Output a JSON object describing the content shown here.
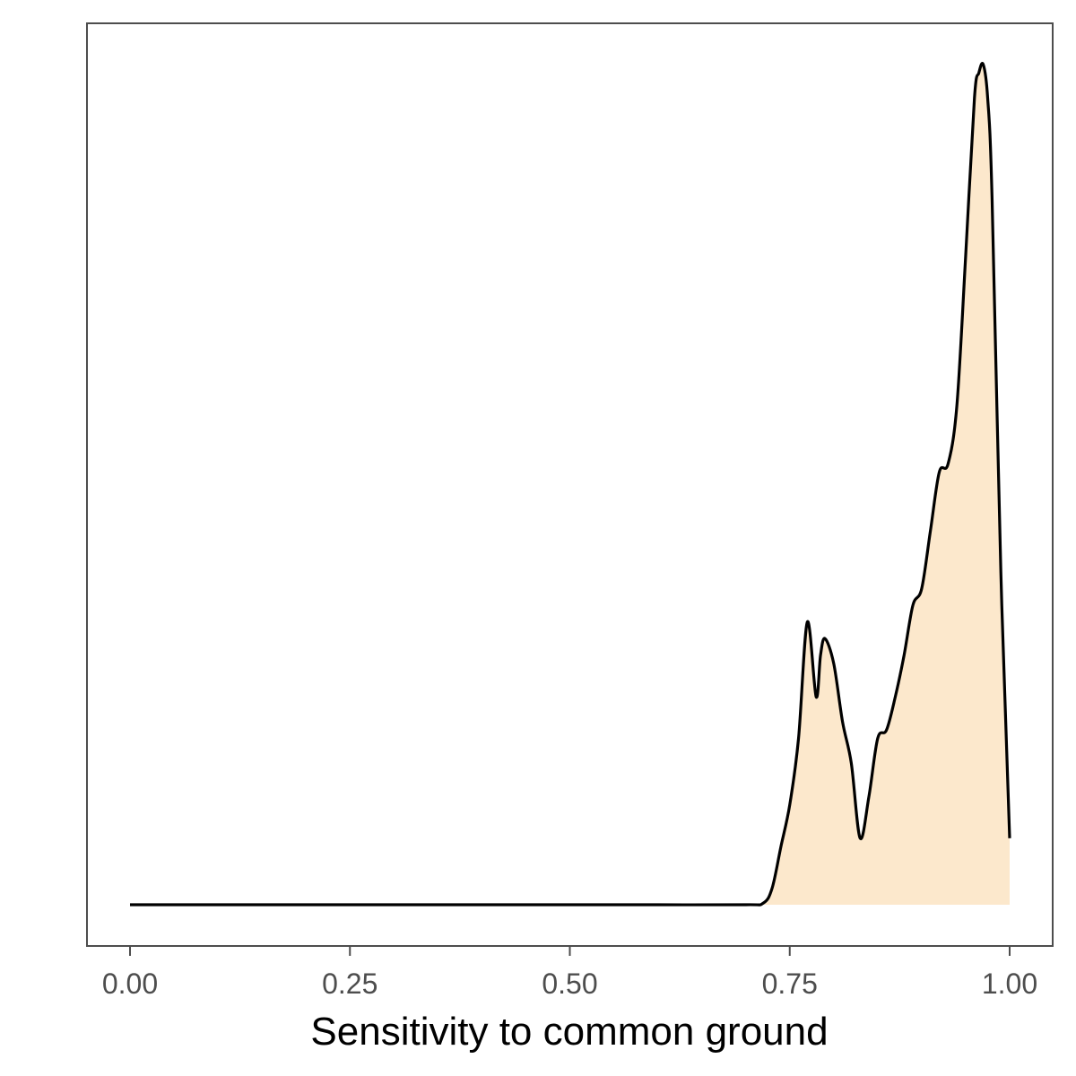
{
  "chart_data": {
    "type": "area",
    "title": "",
    "xlabel": "Sensitivity to common ground",
    "ylabel": "",
    "xlim": [
      0,
      1
    ],
    "x_ticks": [
      "0.00",
      "0.25",
      "0.50",
      "0.75",
      "1.00"
    ],
    "x_tick_values": [
      0,
      0.25,
      0.5,
      0.75,
      1.0
    ],
    "y_ticks_shown": false,
    "grid": false,
    "legend": "none",
    "colors": {
      "fill": "#fce8cc",
      "line": "#000000",
      "panel_border": "#4d4d4d",
      "tick_text": "#4d4d4d"
    },
    "series": [
      {
        "x": [
          0.0,
          0.1,
          0.2,
          0.3,
          0.4,
          0.5,
          0.6,
          0.7,
          0.72,
          0.73,
          0.74,
          0.75,
          0.76,
          0.77,
          0.78,
          0.785,
          0.79,
          0.8,
          0.81,
          0.82,
          0.83,
          0.84,
          0.85,
          0.86,
          0.87,
          0.88,
          0.89,
          0.9,
          0.91,
          0.92,
          0.93,
          0.94,
          0.95,
          0.96,
          0.965,
          0.97,
          0.975,
          0.98,
          0.99,
          1.0
        ],
        "y": [
          0.0,
          0.0,
          0.0,
          0.0,
          0.0,
          0.0,
          0.0,
          0.0,
          0.002,
          0.02,
          0.07,
          0.12,
          0.2,
          0.34,
          0.25,
          0.3,
          0.32,
          0.29,
          0.22,
          0.17,
          0.08,
          0.13,
          0.2,
          0.21,
          0.25,
          0.3,
          0.36,
          0.38,
          0.45,
          0.52,
          0.53,
          0.6,
          0.78,
          0.97,
          1.0,
          1.01,
          0.97,
          0.85,
          0.4,
          0.08
        ]
      }
    ]
  }
}
